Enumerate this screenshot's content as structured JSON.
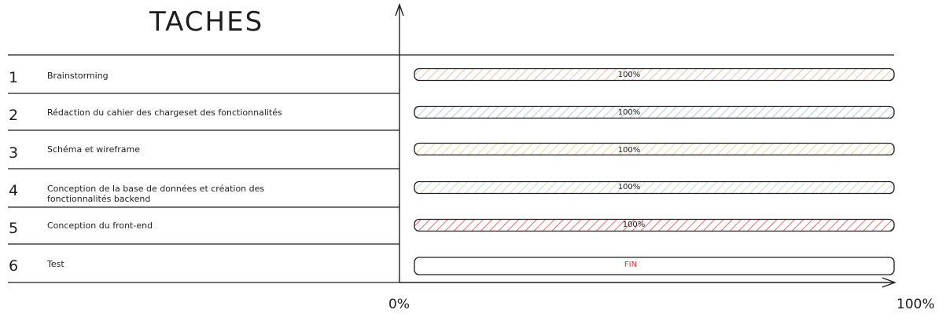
{
  "title": "TACHES",
  "axis": {
    "min_label": "0%",
    "max_label": "100%"
  },
  "colors": {
    "ink": "#1e1e1e",
    "fin_text": "#e03131"
  },
  "chart_data": {
    "type": "bar",
    "categories": [
      "Brainstorming",
      "Rédaction du cahier des chargeset des fonctionnalités",
      "Schéma et wireframe",
      "Conception de la base de données et création des fonctionnalités backend",
      "Conception du front-end",
      "Test"
    ],
    "values": [
      100,
      100,
      100,
      100,
      100,
      100
    ],
    "xlim": [
      0,
      100
    ]
  },
  "tasks": [
    {
      "number": "1",
      "label": "Brainstorming",
      "bar_text": "100%",
      "hatch_color": "#e8a08a"
    },
    {
      "number": "2",
      "label": "Rédaction du cahier des chargeset des fonctionnalités",
      "bar_text": "100%",
      "hatch_color": "#8fb8d8"
    },
    {
      "number": "3",
      "label": "Schéma et wireframe",
      "bar_text": "100%",
      "hatch_color": "#e8c878"
    },
    {
      "number": "4",
      "label": "Conception de la base de données et création des fonctionnalités backend",
      "bar_text": "100%",
      "hatch_color": "#a8d8a8"
    },
    {
      "number": "5",
      "label": "Conception du front-end",
      "bar_text": "100%",
      "hatch_color": "#e03131"
    },
    {
      "number": "6",
      "label": "Test",
      "bar_text": "FIN",
      "hatch_color": "none"
    }
  ]
}
